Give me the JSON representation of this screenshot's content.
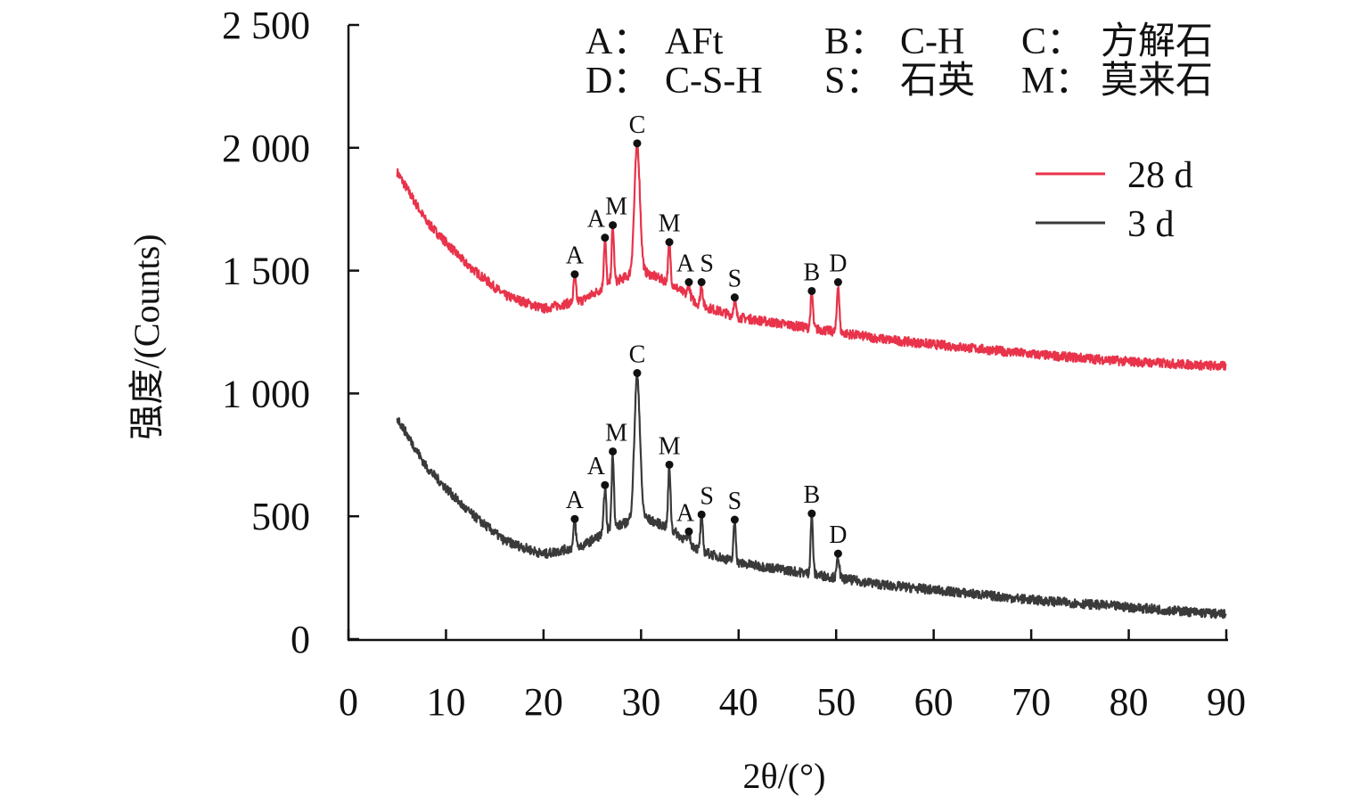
{
  "chart_data": {
    "type": "line",
    "title": "",
    "xlabel": "2θ/(°)",
    "ylabel": "强度/(Counts)",
    "xlim": [
      0,
      90
    ],
    "ylim": [
      0,
      2500
    ],
    "xticks": [
      0,
      10,
      20,
      30,
      40,
      50,
      60,
      70,
      80,
      90
    ],
    "xtick_labels": [
      "0",
      "10",
      "20",
      "30",
      "40",
      "50",
      "60",
      "70",
      "80",
      "90"
    ],
    "yticks": [
      0,
      500,
      1000,
      1500,
      2000,
      2500
    ],
    "ytick_labels": [
      "0",
      "500",
      "1 000",
      "1 500",
      "2 000",
      "2 500"
    ],
    "grid": false,
    "legend_position": "top-right",
    "phase_key": [
      [
        "A：",
        "AFt"
      ],
      [
        "B：",
        "C-H"
      ],
      [
        "C：",
        "方解石"
      ],
      [
        "D：",
        "C-S-H"
      ],
      [
        "S：",
        "石英"
      ],
      [
        "M：",
        "莫来石"
      ]
    ],
    "series": [
      {
        "name": "28 d",
        "color": "#e8334a",
        "background_x": [
          5,
          8,
          12,
          16,
          20,
          24,
          27,
          30,
          33,
          36,
          40,
          45,
          50,
          55,
          60,
          70,
          80,
          90
        ],
        "background_y": [
          1900,
          1700,
          1530,
          1400,
          1345,
          1380,
          1450,
          1500,
          1450,
          1360,
          1310,
          1280,
          1250,
          1220,
          1200,
          1160,
          1130,
          1110
        ],
        "peaks": [
          {
            "label": "A",
            "x": 23.2,
            "y": 1485
          },
          {
            "label": "A",
            "x": 26.3,
            "y": 1634
          },
          {
            "label": "M",
            "x": 27.1,
            "y": 1685
          },
          {
            "label": "C",
            "x": 29.6,
            "y": 2018
          },
          {
            "label": "M",
            "x": 32.9,
            "y": 1616
          },
          {
            "label": "A",
            "x": 34.9,
            "y": 1453
          },
          {
            "label": "S",
            "x": 36.2,
            "y": 1453
          },
          {
            "label": "S",
            "x": 39.6,
            "y": 1391
          },
          {
            "label": "B",
            "x": 47.5,
            "y": 1417
          },
          {
            "label": "D",
            "x": 50.2,
            "y": 1453
          }
        ]
      },
      {
        "name": "3 d",
        "color": "#3a3a3a",
        "background_x": [
          5,
          8,
          12,
          16,
          20,
          24,
          27,
          30,
          33,
          36,
          40,
          45,
          50,
          55,
          60,
          70,
          80,
          90
        ],
        "background_y": [
          900,
          700,
          530,
          400,
          345,
          380,
          450,
          500,
          450,
          360,
          310,
          280,
          250,
          220,
          200,
          160,
          130,
          100
        ],
        "peaks": [
          {
            "label": "A",
            "x": 23.2,
            "y": 489
          },
          {
            "label": "A",
            "x": 26.3,
            "y": 627
          },
          {
            "label": "M",
            "x": 27.1,
            "y": 764
          },
          {
            "label": "C",
            "x": 29.6,
            "y": 1083
          },
          {
            "label": "M",
            "x": 32.9,
            "y": 710
          },
          {
            "label": "A",
            "x": 34.9,
            "y": 438
          },
          {
            "label": "S",
            "x": 36.2,
            "y": 507
          },
          {
            "label": "S",
            "x": 39.6,
            "y": 486
          },
          {
            "label": "B",
            "x": 47.5,
            "y": 511
          },
          {
            "label": "D",
            "x": 50.2,
            "y": 348
          }
        ]
      }
    ]
  }
}
